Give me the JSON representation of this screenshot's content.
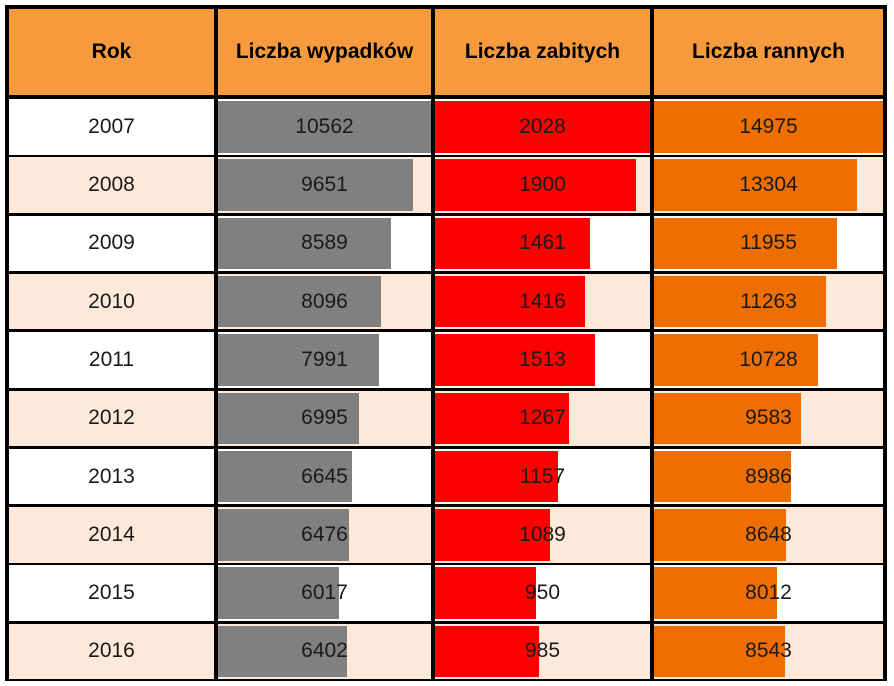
{
  "table": {
    "headers": [
      "Rok",
      "Liczba wypadków",
      "Liczba zabitych",
      "Liczba rannych"
    ]
  },
  "chart_data": {
    "type": "table",
    "title": "",
    "categories": [
      "2007",
      "2008",
      "2009",
      "2010",
      "2011",
      "2012",
      "2013",
      "2014",
      "2015",
      "2016"
    ],
    "series": [
      {
        "name": "Liczba wypadków",
        "values": [
          10562,
          9651,
          8589,
          8096,
          7991,
          6995,
          6645,
          6476,
          6017,
          6402
        ]
      },
      {
        "name": "Liczba zabitych",
        "values": [
          2028,
          1900,
          1461,
          1416,
          1513,
          1267,
          1157,
          1089,
          950,
          985
        ]
      },
      {
        "name": "Liczba rannych",
        "values": [
          14975,
          13304,
          11955,
          11263,
          10728,
          9583,
          8986,
          8648,
          8012,
          8543
        ]
      }
    ],
    "bar_colors": [
      "#808080",
      "#ff0000",
      "#ee6f00"
    ],
    "header_color": "#f79a3e",
    "row_colors": [
      "#ffffff",
      "#fde9d9"
    ],
    "border_color": "#000000"
  }
}
